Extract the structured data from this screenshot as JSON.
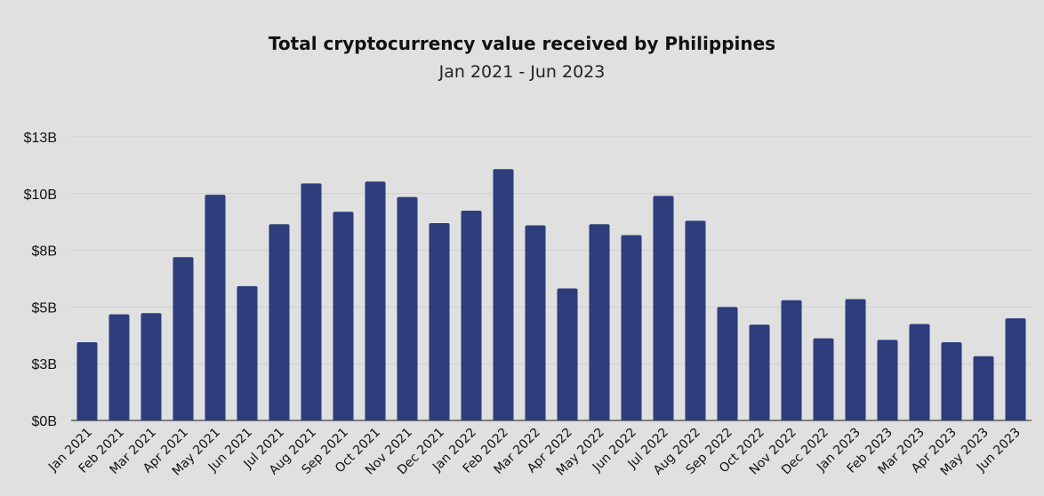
{
  "chart_data": {
    "type": "bar",
    "title": "Total cryptocurrency value received by Philippines",
    "subtitle": "Jan 2021 - Jun 2023",
    "xlabel": "",
    "ylabel": "",
    "ylim": [
      0,
      12.5
    ],
    "y_ticks": [
      {
        "value": 0,
        "label": "$0B"
      },
      {
        "value": 2.5,
        "label": "$3B"
      },
      {
        "value": 5,
        "label": "$5B"
      },
      {
        "value": 7.5,
        "label": "$8B"
      },
      {
        "value": 10,
        "label": "$10B"
      },
      {
        "value": 12.5,
        "label": "$13B"
      }
    ],
    "grid": true,
    "bar_color": "#2e3d7c",
    "categories": [
      "Jan 2021",
      "Feb 2021",
      "Mar 2021",
      "Apr 2021",
      "May 2021",
      "Jun 2021",
      "Jul 2021",
      "Aug 2021",
      "Sep 2021",
      "Oct 2021",
      "Nov 2021",
      "Dec 2021",
      "Jan 2022",
      "Feb 2022",
      "Mar 2022",
      "Apr 2022",
      "May 2022",
      "Jun 2022",
      "Jul 2022",
      "Aug 2022",
      "Sep 2022",
      "Oct 2022",
      "Nov 2022",
      "Dec 2022",
      "Jan 2023",
      "Feb 2023",
      "Mar 2023",
      "Apr 2023",
      "May 2023",
      "Jun 2023"
    ],
    "values": [
      3.45,
      4.68,
      4.73,
      7.2,
      9.95,
      5.92,
      8.65,
      10.45,
      9.2,
      10.53,
      9.85,
      8.7,
      9.25,
      11.08,
      8.6,
      5.82,
      8.65,
      8.17,
      9.9,
      8.8,
      5.0,
      4.22,
      5.3,
      3.62,
      5.35,
      3.55,
      4.25,
      3.45,
      2.83,
      4.5
    ]
  }
}
